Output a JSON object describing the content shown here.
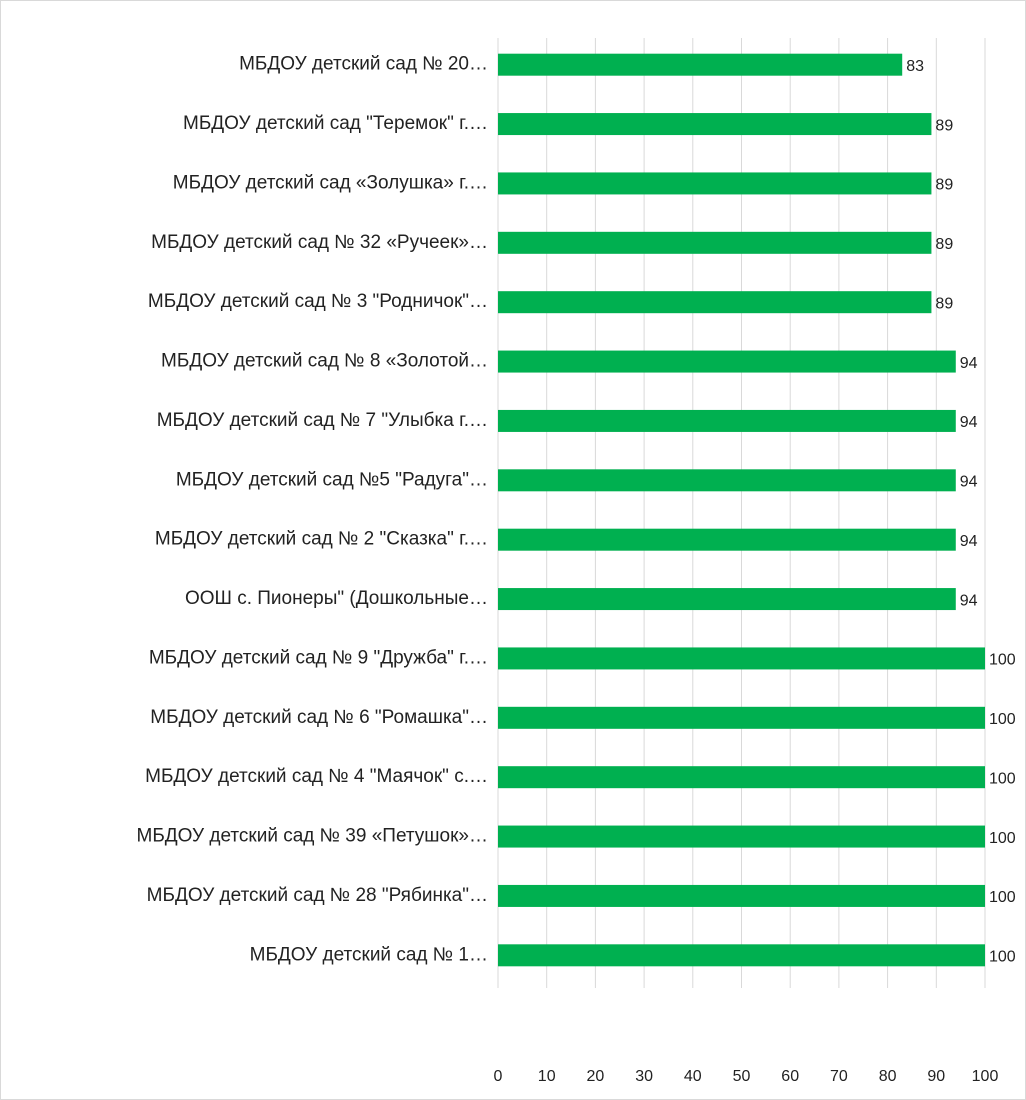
{
  "chart_data": {
    "type": "barh",
    "categories": [
      "МБДОУ детский сад № 20…",
      "МБДОУ детский сад \"Теремок\" г.…",
      "МБДОУ детский сад «Золушка» г.…",
      "МБДОУ детский сад № 32 «Ручеек»…",
      "МБДОУ детский сад № 3 \"Родничок\"…",
      "МБДОУ детский сад № 8 «Золотой…",
      "МБДОУ детский сад № 7 \"Улыбка г.…",
      "МБДОУ детский сад №5 \"Радуга\"…",
      "МБДОУ детский сад № 2 \"Сказка\"  г.…",
      "ООШ с. Пионеры\" (Дошкольные…",
      "МБДОУ детский сад № 9 \"Дружба\" г.…",
      "МБДОУ детский сад № 6 \"Ромашка\"…",
      "МБДОУ детский сад № 4 \"Маячок\" с.…",
      "МБДОУ детский сад № 39 «Петушок»…",
      "МБДОУ детский сад № 28 \"Рябинка\"…",
      "МБДОУ детский сад № 1…"
    ],
    "values": [
      83,
      89,
      89,
      89,
      89,
      94,
      94,
      94,
      94,
      94,
      100,
      100,
      100,
      100,
      100,
      100
    ],
    "color": "#00b050",
    "xlim": [
      0,
      100
    ],
    "xticks": [
      0,
      10,
      20,
      30,
      40,
      50,
      60,
      70,
      80,
      90,
      100
    ],
    "grid": true
  }
}
